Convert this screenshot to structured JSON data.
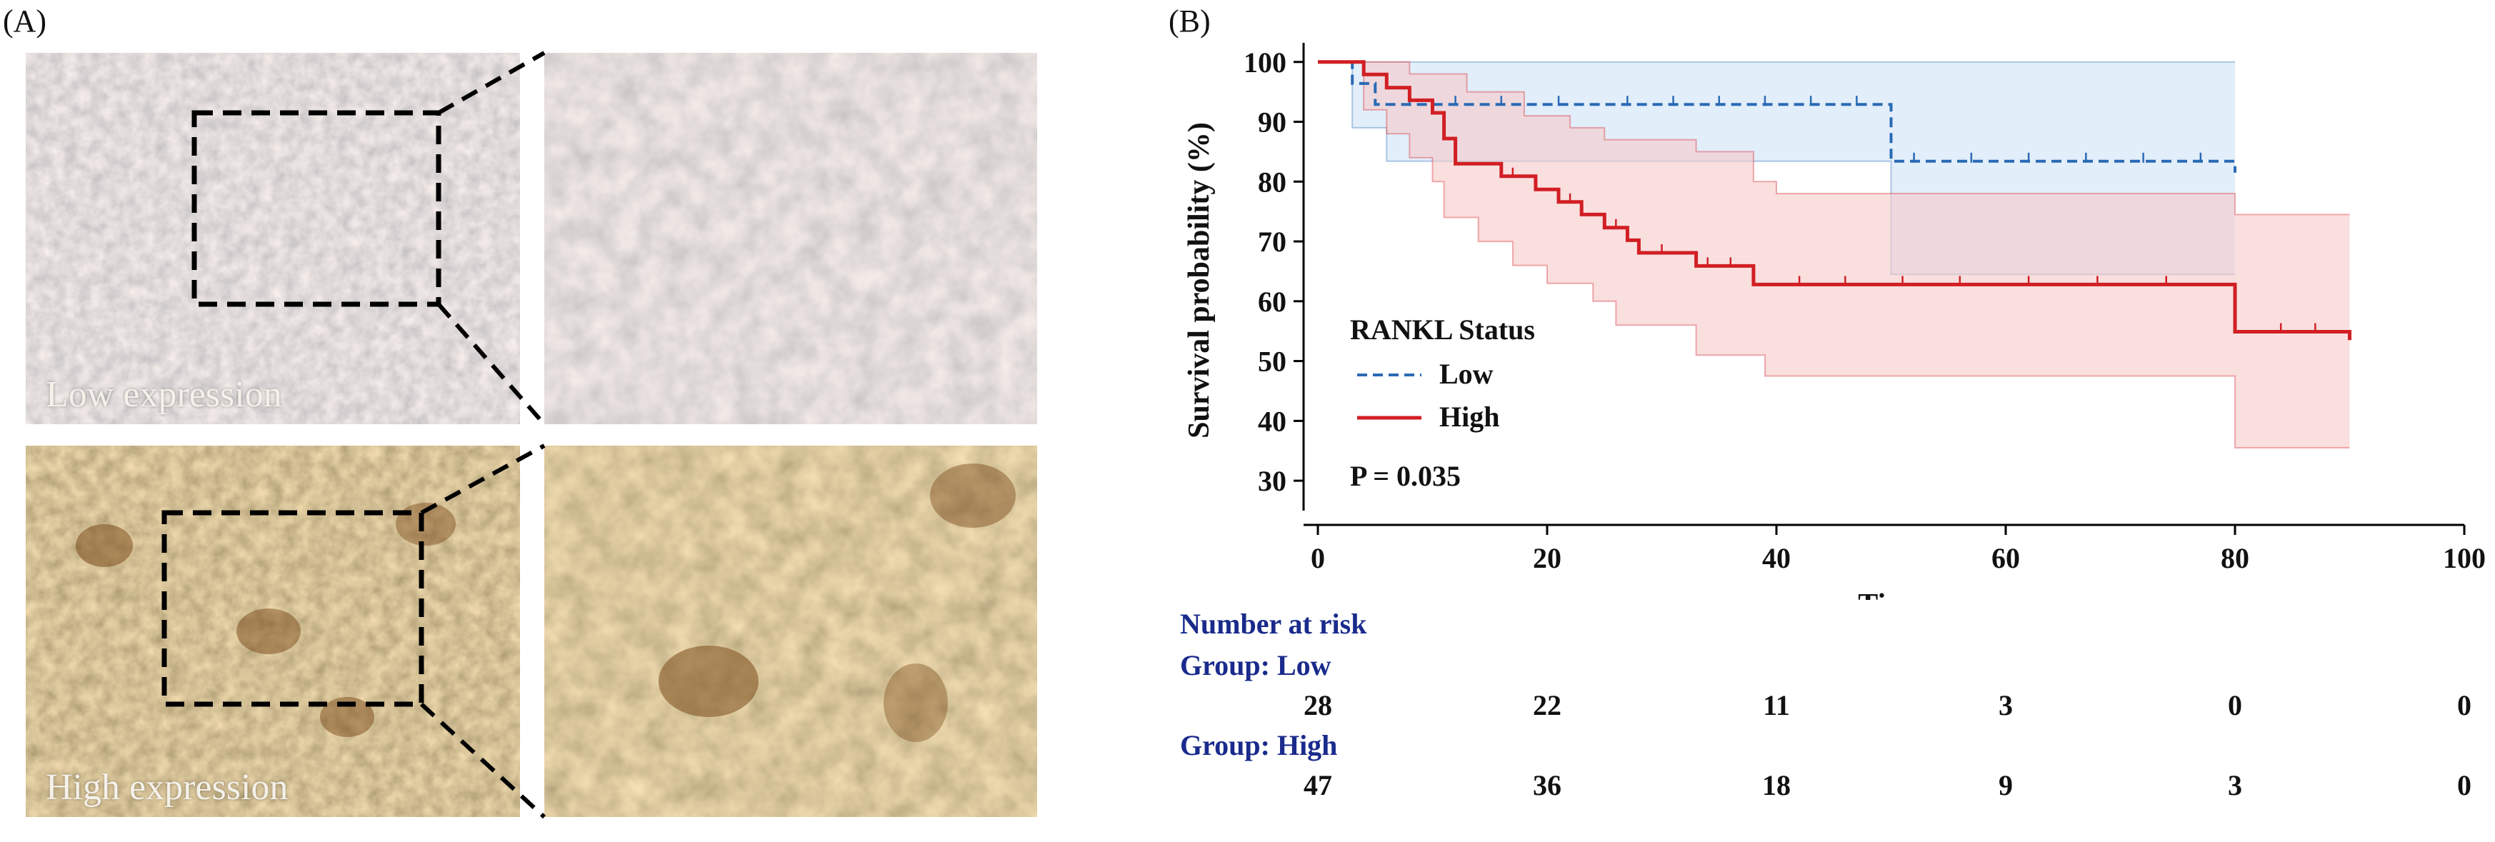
{
  "panel_a": {
    "label": "(A)",
    "low_caption": "Low expression",
    "high_caption": "High expression"
  },
  "panel_b": {
    "label": "(B)"
  },
  "chart_data": {
    "type": "line",
    "subtype": "kaplan-meier",
    "title": "",
    "xlabel": "Time",
    "ylabel": "Survival probability (%)",
    "xlim": [
      0,
      100
    ],
    "ylim": [
      25,
      102
    ],
    "xticks": [
      0,
      20,
      40,
      60,
      80,
      100
    ],
    "yticks": [
      30,
      40,
      50,
      60,
      70,
      80,
      90,
      100
    ],
    "legend": {
      "title": "RANKL Status",
      "position": "lower-left",
      "entries": [
        "Low",
        "High"
      ]
    },
    "annotation": "P = 0.035",
    "series": [
      {
        "name": "Low",
        "color": "#2a6ab5",
        "style": "dashed",
        "band_color": "#cfe2f6",
        "steps": [
          [
            0,
            100
          ],
          [
            3,
            100
          ],
          [
            3,
            96.4
          ],
          [
            5,
            96.4
          ],
          [
            5,
            92.9
          ],
          [
            50,
            92.9
          ],
          [
            50,
            83.4
          ],
          [
            80,
            83.4
          ],
          [
            80,
            81.5
          ]
        ],
        "ci_upper": [
          [
            0,
            100
          ],
          [
            80,
            100
          ]
        ],
        "ci_lower": [
          [
            0,
            100
          ],
          [
            3,
            100
          ],
          [
            3,
            89
          ],
          [
            6,
            89
          ],
          [
            6,
            83.4
          ],
          [
            50,
            83.4
          ],
          [
            50,
            64.5
          ],
          [
            80,
            64.5
          ]
        ],
        "censor_times": [
          8,
          12,
          16,
          21,
          27,
          31,
          35,
          39,
          43,
          47,
          52,
          57,
          62,
          67,
          72,
          77
        ]
      },
      {
        "name": "High",
        "color": "#d11f24",
        "style": "solid",
        "band_color": "#f7c9c9",
        "steps": [
          [
            0,
            100
          ],
          [
            4,
            100
          ],
          [
            4,
            97.9
          ],
          [
            6,
            97.9
          ],
          [
            6,
            95.7
          ],
          [
            8,
            95.7
          ],
          [
            8,
            93.6
          ],
          [
            10,
            93.6
          ],
          [
            10,
            91.5
          ],
          [
            11,
            91.5
          ],
          [
            11,
            87.2
          ],
          [
            12,
            87.2
          ],
          [
            12,
            83
          ],
          [
            16,
            83
          ],
          [
            16,
            80.9
          ],
          [
            19,
            80.9
          ],
          [
            19,
            78.7
          ],
          [
            21,
            78.7
          ],
          [
            21,
            76.6
          ],
          [
            23,
            76.6
          ],
          [
            23,
            74.5
          ],
          [
            25,
            74.5
          ],
          [
            25,
            72.3
          ],
          [
            27,
            72.3
          ],
          [
            27,
            70.2
          ],
          [
            28,
            70.2
          ],
          [
            28,
            68.1
          ],
          [
            33,
            68.1
          ],
          [
            33,
            65.9
          ],
          [
            38,
            65.9
          ],
          [
            38,
            62.8
          ],
          [
            80,
            62.8
          ],
          [
            80,
            54.9
          ],
          [
            90,
            54.9
          ],
          [
            90,
            53.5
          ]
        ],
        "ci_upper": [
          [
            0,
            100
          ],
          [
            8,
            100
          ],
          [
            8,
            98
          ],
          [
            13,
            98
          ],
          [
            13,
            95
          ],
          [
            18,
            95
          ],
          [
            18,
            91
          ],
          [
            22,
            91
          ],
          [
            22,
            89
          ],
          [
            25,
            89
          ],
          [
            25,
            87
          ],
          [
            33,
            87
          ],
          [
            33,
            85
          ],
          [
            38,
            85
          ],
          [
            38,
            80
          ],
          [
            40,
            80
          ],
          [
            40,
            78
          ],
          [
            80,
            78
          ],
          [
            80,
            74.5
          ],
          [
            90,
            74.5
          ]
        ],
        "ci_lower": [
          [
            0,
            100
          ],
          [
            4,
            100
          ],
          [
            4,
            92
          ],
          [
            6,
            92
          ],
          [
            6,
            88
          ],
          [
            8,
            88
          ],
          [
            8,
            84
          ],
          [
            10,
            84
          ],
          [
            10,
            80
          ],
          [
            11,
            80
          ],
          [
            11,
            74
          ],
          [
            14,
            74
          ],
          [
            14,
            70
          ],
          [
            17,
            70
          ],
          [
            17,
            66
          ],
          [
            20,
            66
          ],
          [
            20,
            63
          ],
          [
            24,
            63
          ],
          [
            24,
            60
          ],
          [
            26,
            60
          ],
          [
            26,
            56
          ],
          [
            33,
            56
          ],
          [
            33,
            51
          ],
          [
            39,
            51
          ],
          [
            39,
            47.5
          ],
          [
            80,
            47.5
          ],
          [
            80,
            35.5
          ],
          [
            90,
            35.5
          ]
        ],
        "censor_times": [
          12,
          17,
          22,
          26,
          30,
          34,
          36,
          42,
          46,
          51,
          56,
          62,
          68,
          74,
          84,
          87
        ]
      }
    ],
    "risk_table": {
      "title": "Number at risk",
      "times": [
        0,
        20,
        40,
        60,
        80,
        100
      ],
      "groups": [
        {
          "label": "Group: Low",
          "values": [
            "28",
            "22",
            "11",
            "3",
            "0",
            "0"
          ]
        },
        {
          "label": "Group: High",
          "values": [
            "47",
            "36",
            "18",
            "9",
            "3",
            "0"
          ]
        }
      ]
    }
  }
}
